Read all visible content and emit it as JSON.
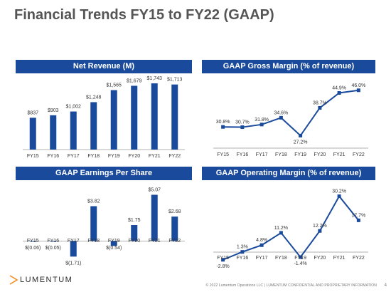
{
  "title": "Financial Trends FY15 to FY22 (GAAP)",
  "footer": {
    "copyright": "© 2022 Lumentum Operations LLC  |  LUMENTUM CONFIDENTIAL AND PROPRIETARY INFORMATION",
    "page": "4",
    "logo_text": "LUMENTUM"
  },
  "colors": {
    "accent": "#1a4a9c",
    "header_bg": "#1a4a9c",
    "axis": "#999999"
  },
  "chart_data": [
    {
      "type": "bar",
      "title": "Net Revenue (M)",
      "categories": [
        "FY15",
        "FY16",
        "FY17",
        "FY18",
        "FY19",
        "FY20",
        "FY21",
        "FY22"
      ],
      "values": [
        837,
        903,
        1002,
        1248,
        1565,
        1679,
        1743,
        1713
      ],
      "labels": [
        "$837",
        "$903",
        "$1,002",
        "$1,248",
        "$1,565",
        "$1,679",
        "$1,743",
        "$1,713"
      ],
      "ylim": [
        0,
        1800
      ]
    },
    {
      "type": "line",
      "title": "GAAP Gross Margin (% of revenue)",
      "categories": [
        "FY15",
        "FY16",
        "FY17",
        "FY18",
        "FY19",
        "FY20",
        "FY21",
        "FY22"
      ],
      "values": [
        30.8,
        30.7,
        31.8,
        34.6,
        27.2,
        38.7,
        44.9,
        46.0
      ],
      "labels": [
        "30.8%",
        "30.7%",
        "31.8%",
        "34.6%",
        "27.2%",
        "38.7%",
        "44.9%",
        "46.0%"
      ],
      "ylim": [
        22,
        48
      ]
    },
    {
      "type": "bar",
      "title": "GAAP Earnings Per Share",
      "categories": [
        "FY15",
        "FY16",
        "FY17",
        "FY18",
        "FY19",
        "FY20",
        "FY21",
        "FY22"
      ],
      "values": [
        -0.06,
        -0.05,
        -1.71,
        3.82,
        -0.54,
        1.75,
        5.07,
        2.68
      ],
      "labels": [
        "$(0.06)",
        "$(0.05)",
        "$(1.71)",
        "$3.82",
        "$(0.54)",
        "$1.75",
        "$5.07",
        "$2.68"
      ],
      "ylim": [
        -2,
        5.5
      ]
    },
    {
      "type": "line",
      "title": "GAAP Operating Margin (% of revenue)",
      "categories": [
        "FY15",
        "FY16",
        "FY17",
        "FY18",
        "FY19",
        "FY20",
        "FY21",
        "FY22"
      ],
      "values": [
        -2.8,
        1.3,
        4.8,
        11.2,
        -1.4,
        12.2,
        30.2,
        17.7
      ],
      "labels": [
        "-2.8%",
        "1.3%",
        "4.8%",
        "11.2%",
        "-1.4%",
        "12.2%",
        "30.2%",
        "17.7%"
      ],
      "ylim": [
        -4,
        33
      ]
    }
  ]
}
